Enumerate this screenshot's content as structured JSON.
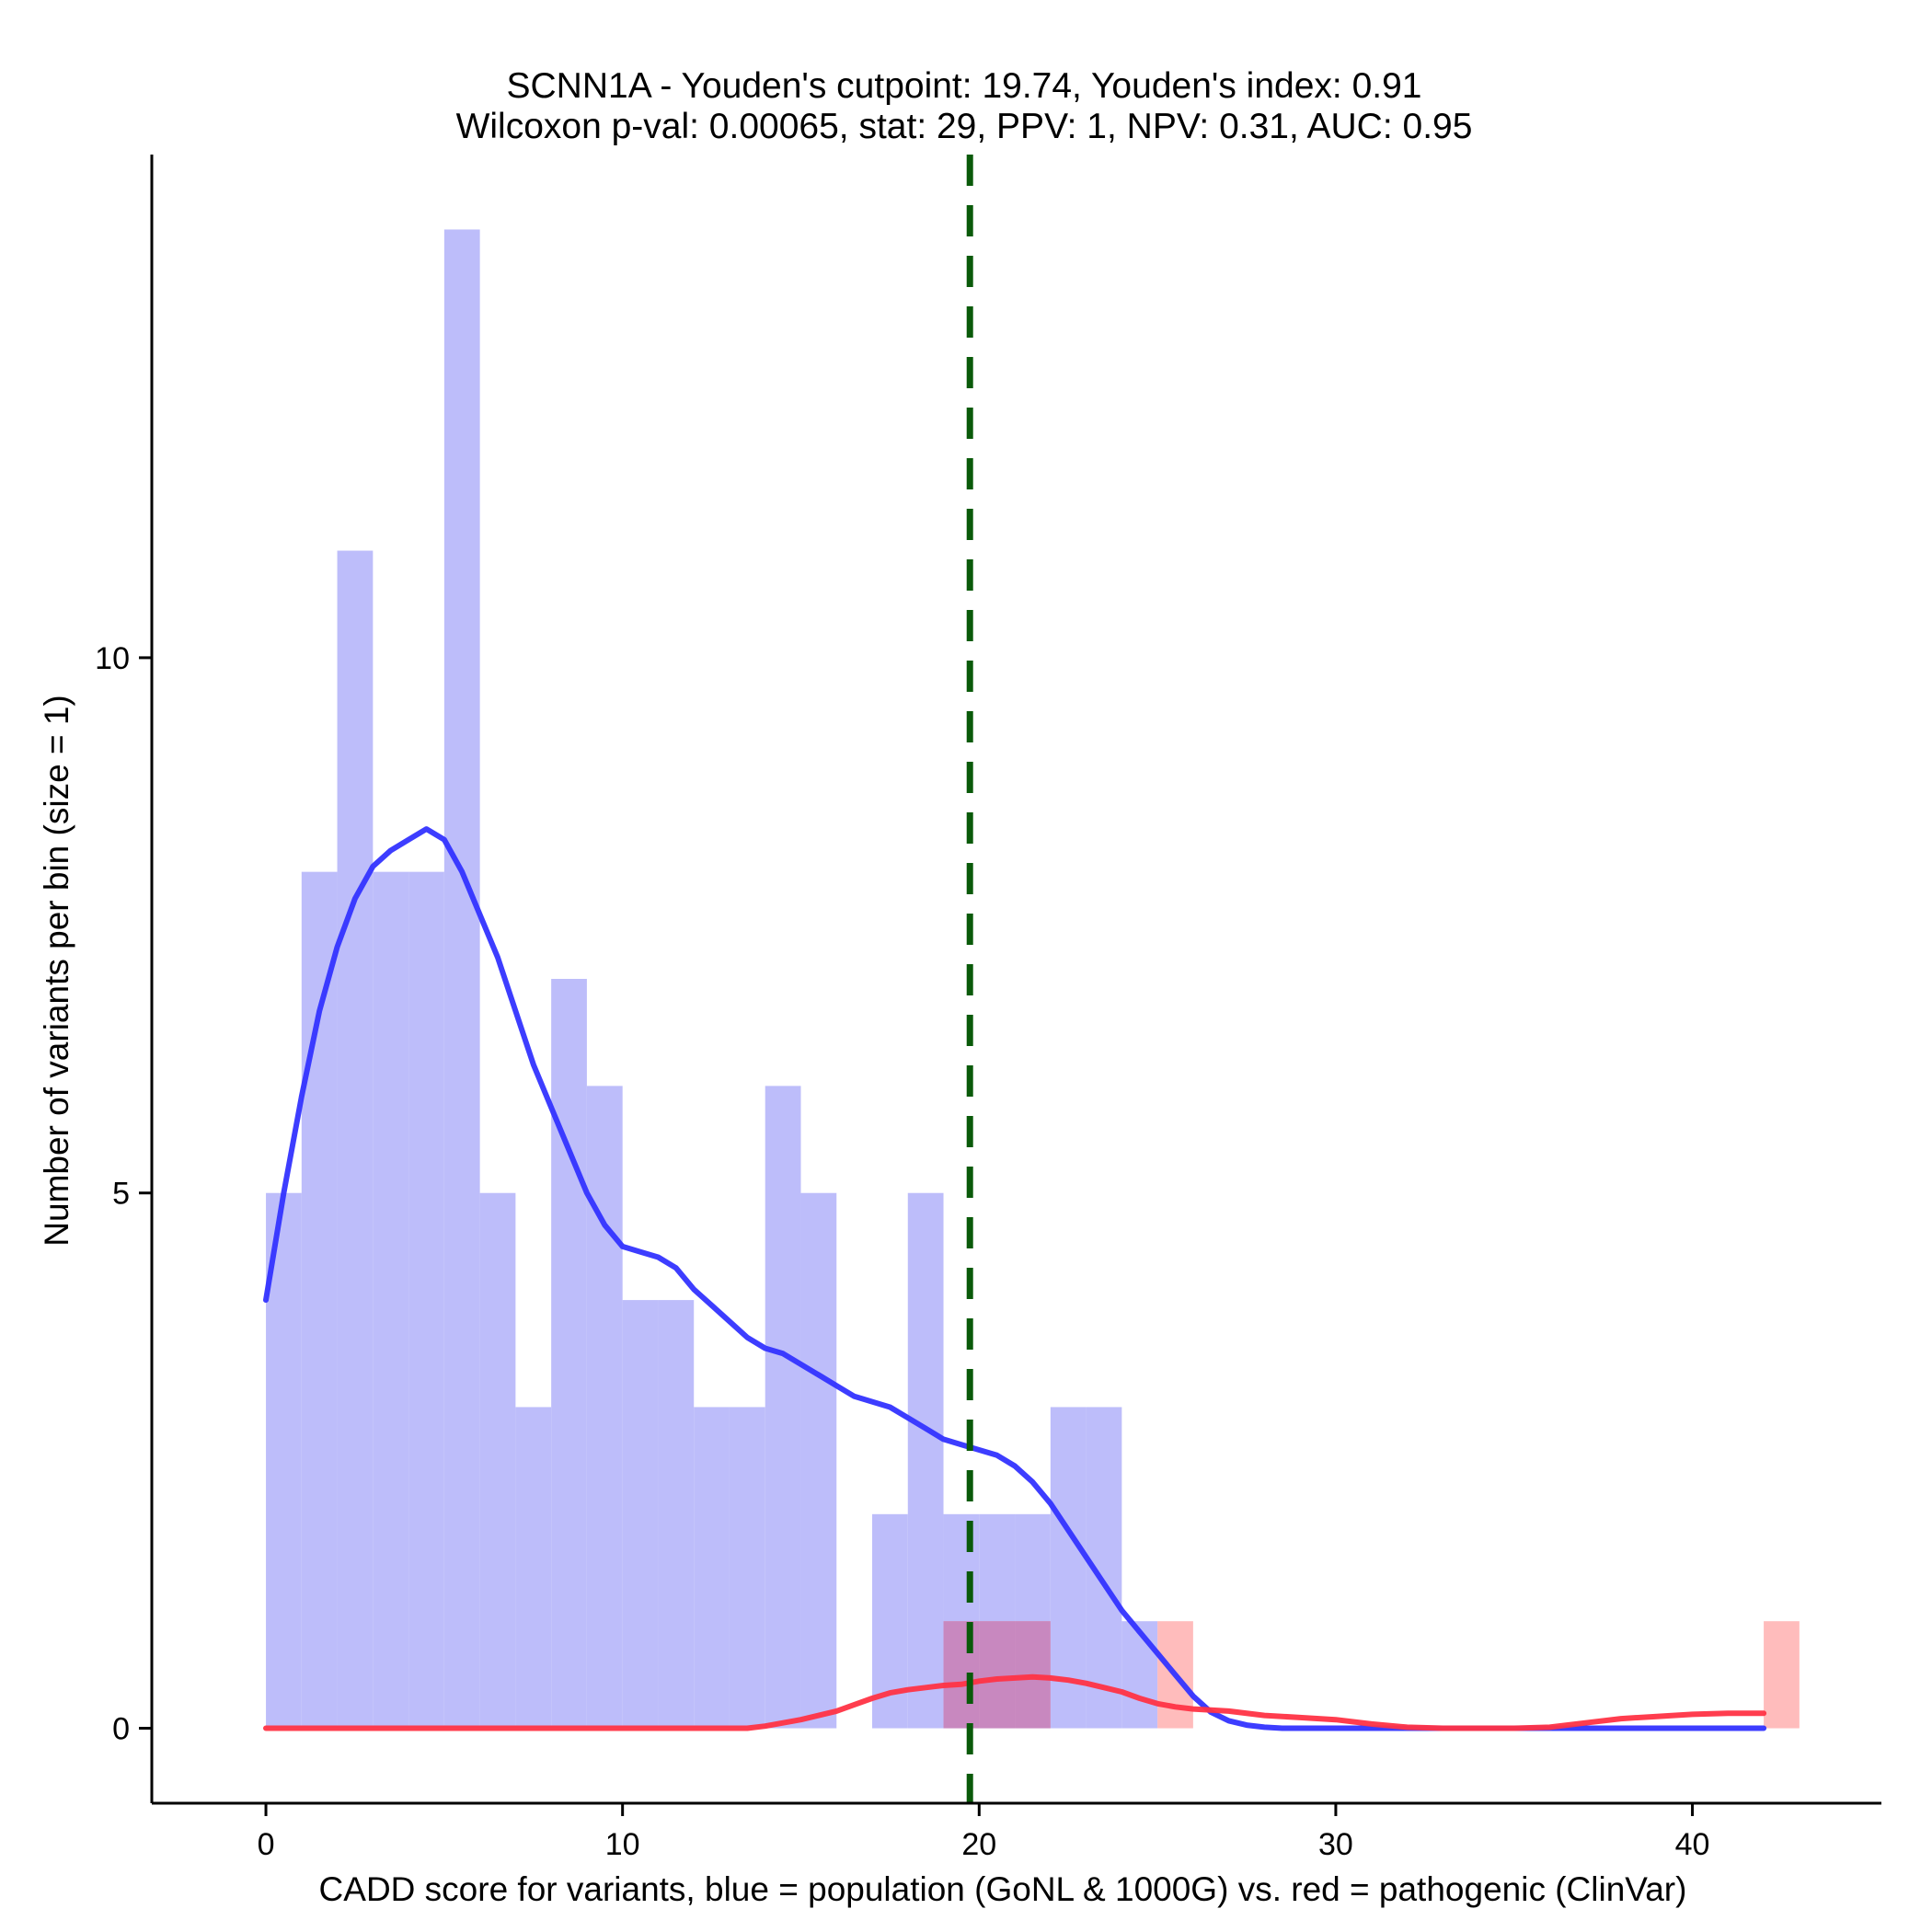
{
  "chart_data": {
    "type": "histogram",
    "title": "SCNN1A - Youden's cutpoint: 19.74, Youden's index: 0.91",
    "subtitle": "Wilcoxon p-val: 0.00065, stat: 29, PPV: 1, NPV: 0.31, AUC: 0.95",
    "xlabel": "CADD score for variants, blue = population (GoNL & 1000G) vs. red = pathogenic (ClinVar)",
    "ylabel": "Number of variants per bin (size = 1)",
    "xlim": [
      -3.2,
      45.3
    ],
    "ylim": [
      -0.7,
      14.7
    ],
    "x_ticks": [
      0,
      10,
      20,
      30,
      40
    ],
    "x_tick_labels": [
      "0",
      "10",
      "20",
      "30",
      "40"
    ],
    "y_ticks": [
      0,
      5,
      10
    ],
    "y_tick_labels": [
      "0",
      "5",
      "10"
    ],
    "bin_width": 1,
    "cutpoint": 19.74,
    "grid": false,
    "series": [
      {
        "name": "population (GoNL & 1000G)",
        "color": "#3333ff",
        "fill": "#bdbdfa",
        "bins": [
          {
            "start": 0,
            "count": 5
          },
          {
            "start": 1,
            "count": 8
          },
          {
            "start": 2,
            "count": 11
          },
          {
            "start": 3,
            "count": 8
          },
          {
            "start": 4,
            "count": 8
          },
          {
            "start": 5,
            "count": 14
          },
          {
            "start": 6,
            "count": 5
          },
          {
            "start": 7,
            "count": 3
          },
          {
            "start": 8,
            "count": 7
          },
          {
            "start": 9,
            "count": 6
          },
          {
            "start": 10,
            "count": 4
          },
          {
            "start": 11,
            "count": 4
          },
          {
            "start": 12,
            "count": 3
          },
          {
            "start": 13,
            "count": 3
          },
          {
            "start": 14,
            "count": 6
          },
          {
            "start": 15,
            "count": 5
          },
          {
            "start": 17,
            "count": 2
          },
          {
            "start": 18,
            "count": 5
          },
          {
            "start": 19,
            "count": 2
          },
          {
            "start": 20,
            "count": 2
          },
          {
            "start": 21,
            "count": 2
          },
          {
            "start": 22,
            "count": 3
          },
          {
            "start": 23,
            "count": 3
          },
          {
            "start": 24,
            "count": 1
          }
        ],
        "density_x": [
          0,
          0.5,
          1,
          1.5,
          2,
          2.5,
          3,
          3.5,
          4,
          4.5,
          5,
          5.5,
          6,
          6.5,
          7,
          7.5,
          8,
          8.5,
          9,
          9.5,
          10,
          10.5,
          11,
          11.5,
          12,
          12.5,
          13,
          13.5,
          14,
          14.5,
          15,
          15.5,
          16,
          16.5,
          17,
          17.5,
          18,
          18.5,
          19,
          19.5,
          20,
          20.5,
          21,
          21.5,
          22,
          22.5,
          23,
          23.5,
          24,
          24.5,
          25,
          25.5,
          26,
          26.5,
          27,
          27.5,
          28,
          28.5,
          29,
          29.5,
          30,
          32,
          34,
          36,
          38,
          40,
          42
        ],
        "density_y": [
          4.0,
          5.0,
          5.9,
          6.7,
          7.3,
          7.75,
          8.05,
          8.2,
          8.3,
          8.4,
          8.3,
          8.0,
          7.6,
          7.2,
          6.7,
          6.2,
          5.8,
          5.4,
          5.0,
          4.7,
          4.5,
          4.45,
          4.4,
          4.3,
          4.1,
          3.95,
          3.8,
          3.65,
          3.55,
          3.5,
          3.4,
          3.3,
          3.2,
          3.1,
          3.05,
          3.0,
          2.9,
          2.8,
          2.7,
          2.65,
          2.6,
          2.55,
          2.45,
          2.3,
          2.1,
          1.85,
          1.6,
          1.35,
          1.1,
          0.9,
          0.7,
          0.5,
          0.3,
          0.15,
          0.07,
          0.03,
          0.01,
          0.0,
          0.0,
          0.0,
          0.0,
          0.0,
          0.0,
          0.0,
          0.0,
          0.0,
          0.0
        ]
      },
      {
        "name": "pathogenic (ClinVar)",
        "color": "#ff3344",
        "fill": "#ffb0b0",
        "bins": [
          {
            "start": 19,
            "count": 1
          },
          {
            "start": 20,
            "count": 1
          },
          {
            "start": 21,
            "count": 1
          },
          {
            "start": 25,
            "count": 1
          },
          {
            "start": 42,
            "count": 1
          }
        ],
        "density_x": [
          0,
          5,
          10,
          13.5,
          14,
          14.5,
          15,
          15.5,
          16,
          16.5,
          17,
          17.5,
          18,
          18.5,
          19,
          19.5,
          20,
          20.5,
          21,
          21.5,
          22,
          22.5,
          23,
          23.5,
          24,
          24.5,
          25,
          25.5,
          26,
          26.5,
          27,
          28,
          29,
          30,
          31,
          32,
          33,
          34,
          35,
          36,
          37,
          38,
          39,
          40,
          41,
          42
        ],
        "density_y": [
          0,
          0,
          0,
          0,
          0.02,
          0.05,
          0.08,
          0.12,
          0.16,
          0.22,
          0.28,
          0.33,
          0.36,
          0.38,
          0.4,
          0.41,
          0.44,
          0.46,
          0.47,
          0.48,
          0.47,
          0.45,
          0.42,
          0.38,
          0.34,
          0.28,
          0.23,
          0.2,
          0.18,
          0.17,
          0.16,
          0.12,
          0.1,
          0.08,
          0.04,
          0.01,
          0.0,
          0.0,
          0.0,
          0.01,
          0.05,
          0.09,
          0.11,
          0.13,
          0.14,
          0.14
        ]
      }
    ]
  }
}
